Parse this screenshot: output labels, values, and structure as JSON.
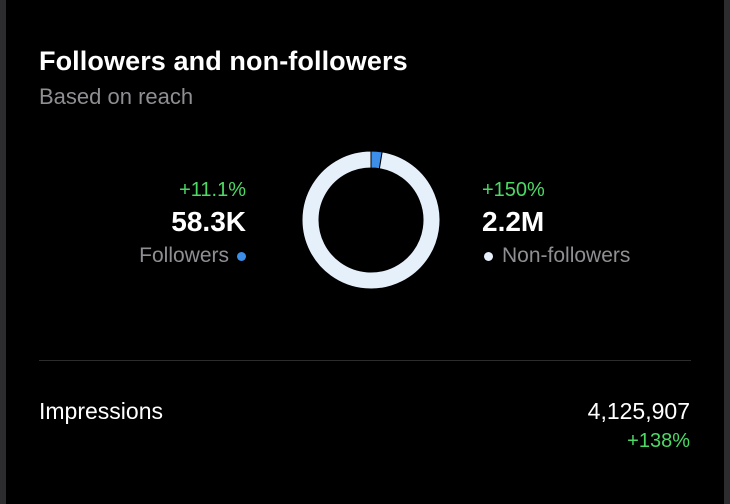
{
  "header": {
    "title": "Followers and non-followers",
    "subtitle": "Based on reach"
  },
  "followers": {
    "change": "+11.1%",
    "value": "58.3K",
    "label": "Followers",
    "color": "#3d8ee8"
  },
  "non_followers": {
    "change": "+150%",
    "value": "2.2M",
    "label": "Non-followers",
    "color": "#e6f0fb"
  },
  "chart_data": {
    "type": "pie",
    "style": "donut",
    "labels": [
      "Followers",
      "Non-followers"
    ],
    "values": [
      58300,
      2200000
    ],
    "colors": [
      "#3d8ee8",
      "#e6f0fb"
    ]
  },
  "impressions": {
    "label": "Impressions",
    "value": "4,125,907",
    "change": "+138%"
  },
  "colors": {
    "background": "#000000",
    "positive": "#4cd964",
    "secondary_text": "#8e8e93",
    "divider": "#2c2c2e"
  }
}
